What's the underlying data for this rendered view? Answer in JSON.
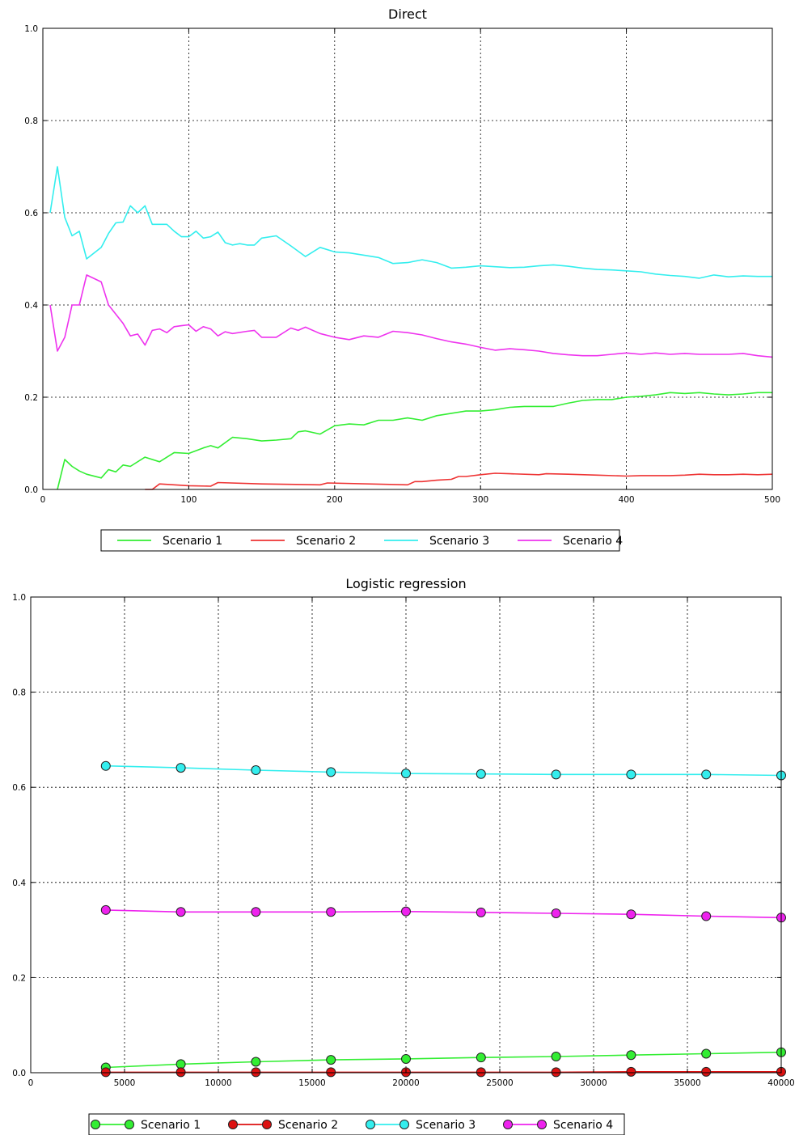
{
  "chart_data": [
    {
      "type": "line",
      "title": "Direct",
      "xlabel": "",
      "ylabel": "",
      "xlim": [
        0,
        500
      ],
      "ylim": [
        0.0,
        1.0
      ],
      "xticks": [
        0,
        100,
        200,
        300,
        400,
        500
      ],
      "yticks": [
        0.0,
        0.2,
        0.4,
        0.6,
        0.8,
        1.0
      ],
      "grid": true,
      "legend_position": "bottom-center",
      "series": [
        {
          "name": "Scenario 1",
          "color": "#33ee33",
          "x": [
            10,
            15,
            20,
            25,
            30,
            40,
            45,
            50,
            55,
            60,
            70,
            80,
            90,
            100,
            110,
            115,
            120,
            130,
            140,
            150,
            160,
            170,
            175,
            180,
            190,
            200,
            210,
            220,
            230,
            240,
            250,
            260,
            270,
            280,
            290,
            300,
            310,
            320,
            330,
            340,
            350,
            360,
            370,
            380,
            390,
            400,
            410,
            420,
            430,
            440,
            450,
            460,
            470,
            480,
            490,
            500
          ],
          "y": [
            0.0,
            0.065,
            0.05,
            0.04,
            0.033,
            0.025,
            0.043,
            0.038,
            0.053,
            0.05,
            0.07,
            0.06,
            0.08,
            0.078,
            0.09,
            0.095,
            0.09,
            0.113,
            0.11,
            0.105,
            0.107,
            0.11,
            0.125,
            0.127,
            0.12,
            0.138,
            0.142,
            0.14,
            0.15,
            0.15,
            0.155,
            0.15,
            0.16,
            0.165,
            0.17,
            0.17,
            0.173,
            0.178,
            0.18,
            0.18,
            0.18,
            0.187,
            0.193,
            0.195,
            0.195,
            0.2,
            0.202,
            0.205,
            0.21,
            0.208,
            0.21,
            0.207,
            0.205,
            0.207,
            0.21,
            0.21
          ]
        },
        {
          "name": "Scenario 2",
          "color": "#ee3333",
          "x": [
            70,
            75,
            80,
            90,
            100,
            115,
            120,
            150,
            190,
            195,
            250,
            255,
            260,
            270,
            280,
            285,
            290,
            300,
            310,
            320,
            340,
            345,
            360,
            380,
            400,
            410,
            430,
            440,
            450,
            460,
            470,
            480,
            490,
            500
          ],
          "y": [
            0.0,
            0.0,
            0.012,
            0.01,
            0.008,
            0.007,
            0.015,
            0.012,
            0.01,
            0.014,
            0.01,
            0.017,
            0.017,
            0.02,
            0.022,
            0.028,
            0.028,
            0.032,
            0.035,
            0.034,
            0.032,
            0.034,
            0.033,
            0.031,
            0.029,
            0.03,
            0.03,
            0.031,
            0.033,
            0.032,
            0.032,
            0.033,
            0.032,
            0.033
          ]
        },
        {
          "name": "Scenario 3",
          "color": "#33eeee",
          "x": [
            5,
            10,
            15,
            20,
            25,
            30,
            40,
            45,
            50,
            55,
            60,
            65,
            70,
            75,
            80,
            85,
            90,
            95,
            100,
            105,
            110,
            115,
            120,
            125,
            130,
            135,
            140,
            145,
            150,
            160,
            170,
            180,
            190,
            200,
            210,
            220,
            230,
            240,
            250,
            260,
            270,
            280,
            290,
            300,
            310,
            320,
            330,
            340,
            350,
            360,
            370,
            380,
            390,
            400,
            410,
            420,
            430,
            440,
            450,
            460,
            470,
            480,
            490,
            500
          ],
          "y": [
            0.6,
            0.7,
            0.59,
            0.55,
            0.56,
            0.5,
            0.525,
            0.555,
            0.578,
            0.58,
            0.615,
            0.6,
            0.615,
            0.575,
            0.575,
            0.575,
            0.56,
            0.548,
            0.548,
            0.56,
            0.545,
            0.548,
            0.558,
            0.535,
            0.53,
            0.533,
            0.53,
            0.53,
            0.545,
            0.55,
            0.528,
            0.505,
            0.525,
            0.515,
            0.513,
            0.508,
            0.503,
            0.49,
            0.492,
            0.498,
            0.492,
            0.48,
            0.482,
            0.485,
            0.483,
            0.481,
            0.482,
            0.485,
            0.487,
            0.484,
            0.48,
            0.477,
            0.476,
            0.474,
            0.472,
            0.467,
            0.464,
            0.462,
            0.458,
            0.465,
            0.461,
            0.463,
            0.462,
            0.462
          ]
        },
        {
          "name": "Scenario 4",
          "color": "#ee33ee",
          "x": [
            5,
            10,
            15,
            20,
            25,
            30,
            40,
            45,
            50,
            55,
            60,
            65,
            70,
            75,
            80,
            85,
            90,
            95,
            100,
            105,
            110,
            115,
            120,
            125,
            130,
            140,
            145,
            150,
            160,
            170,
            175,
            180,
            190,
            200,
            210,
            220,
            230,
            240,
            250,
            260,
            270,
            280,
            290,
            300,
            310,
            320,
            330,
            340,
            350,
            360,
            370,
            380,
            390,
            400,
            410,
            420,
            430,
            440,
            450,
            460,
            470,
            480,
            490,
            500
          ],
          "y": [
            0.4,
            0.3,
            0.33,
            0.4,
            0.4,
            0.465,
            0.45,
            0.4,
            0.38,
            0.36,
            0.333,
            0.337,
            0.313,
            0.345,
            0.348,
            0.34,
            0.353,
            0.355,
            0.357,
            0.343,
            0.353,
            0.348,
            0.333,
            0.342,
            0.338,
            0.343,
            0.345,
            0.33,
            0.33,
            0.35,
            0.345,
            0.352,
            0.338,
            0.33,
            0.325,
            0.333,
            0.33,
            0.343,
            0.34,
            0.335,
            0.327,
            0.32,
            0.315,
            0.308,
            0.302,
            0.305,
            0.303,
            0.3,
            0.295,
            0.292,
            0.29,
            0.29,
            0.293,
            0.296,
            0.293,
            0.296,
            0.293,
            0.295,
            0.293,
            0.293,
            0.293,
            0.295,
            0.29,
            0.287
          ]
        }
      ]
    },
    {
      "type": "line",
      "title": "Logistic regression",
      "xlabel": "",
      "ylabel": "",
      "xlim": [
        0,
        40000
      ],
      "ylim": [
        0.0,
        1.0
      ],
      "xticks": [
        0,
        5000,
        10000,
        15000,
        20000,
        25000,
        30000,
        35000,
        40000
      ],
      "yticks": [
        0.0,
        0.2,
        0.4,
        0.6,
        0.8,
        1.0
      ],
      "grid": true,
      "markers": true,
      "legend_position": "bottom-center",
      "series": [
        {
          "name": "Scenario 1",
          "color": "#33ee33",
          "x": [
            4000,
            8000,
            12000,
            16000,
            20000,
            24000,
            28000,
            32000,
            36000,
            40000
          ],
          "y": [
            0.011,
            0.018,
            0.023,
            0.027,
            0.029,
            0.032,
            0.034,
            0.037,
            0.04,
            0.043
          ]
        },
        {
          "name": "Scenario 2",
          "color": "#dd1111",
          "x": [
            4000,
            8000,
            12000,
            16000,
            20000,
            24000,
            28000,
            32000,
            36000,
            40000
          ],
          "y": [
            0.001,
            0.001,
            0.001,
            0.001,
            0.001,
            0.001,
            0.001,
            0.002,
            0.002,
            0.002
          ]
        },
        {
          "name": "Scenario 3",
          "color": "#33eeee",
          "x": [
            4000,
            8000,
            12000,
            16000,
            20000,
            24000,
            28000,
            32000,
            36000,
            40000
          ],
          "y": [
            0.645,
            0.641,
            0.636,
            0.632,
            0.629,
            0.628,
            0.627,
            0.627,
            0.627,
            0.625
          ]
        },
        {
          "name": "Scenario 4",
          "color": "#ee22ee",
          "x": [
            4000,
            8000,
            12000,
            16000,
            20000,
            24000,
            28000,
            32000,
            36000,
            40000
          ],
          "y": [
            0.342,
            0.338,
            0.338,
            0.338,
            0.339,
            0.337,
            0.335,
            0.333,
            0.329,
            0.326
          ]
        }
      ]
    }
  ]
}
